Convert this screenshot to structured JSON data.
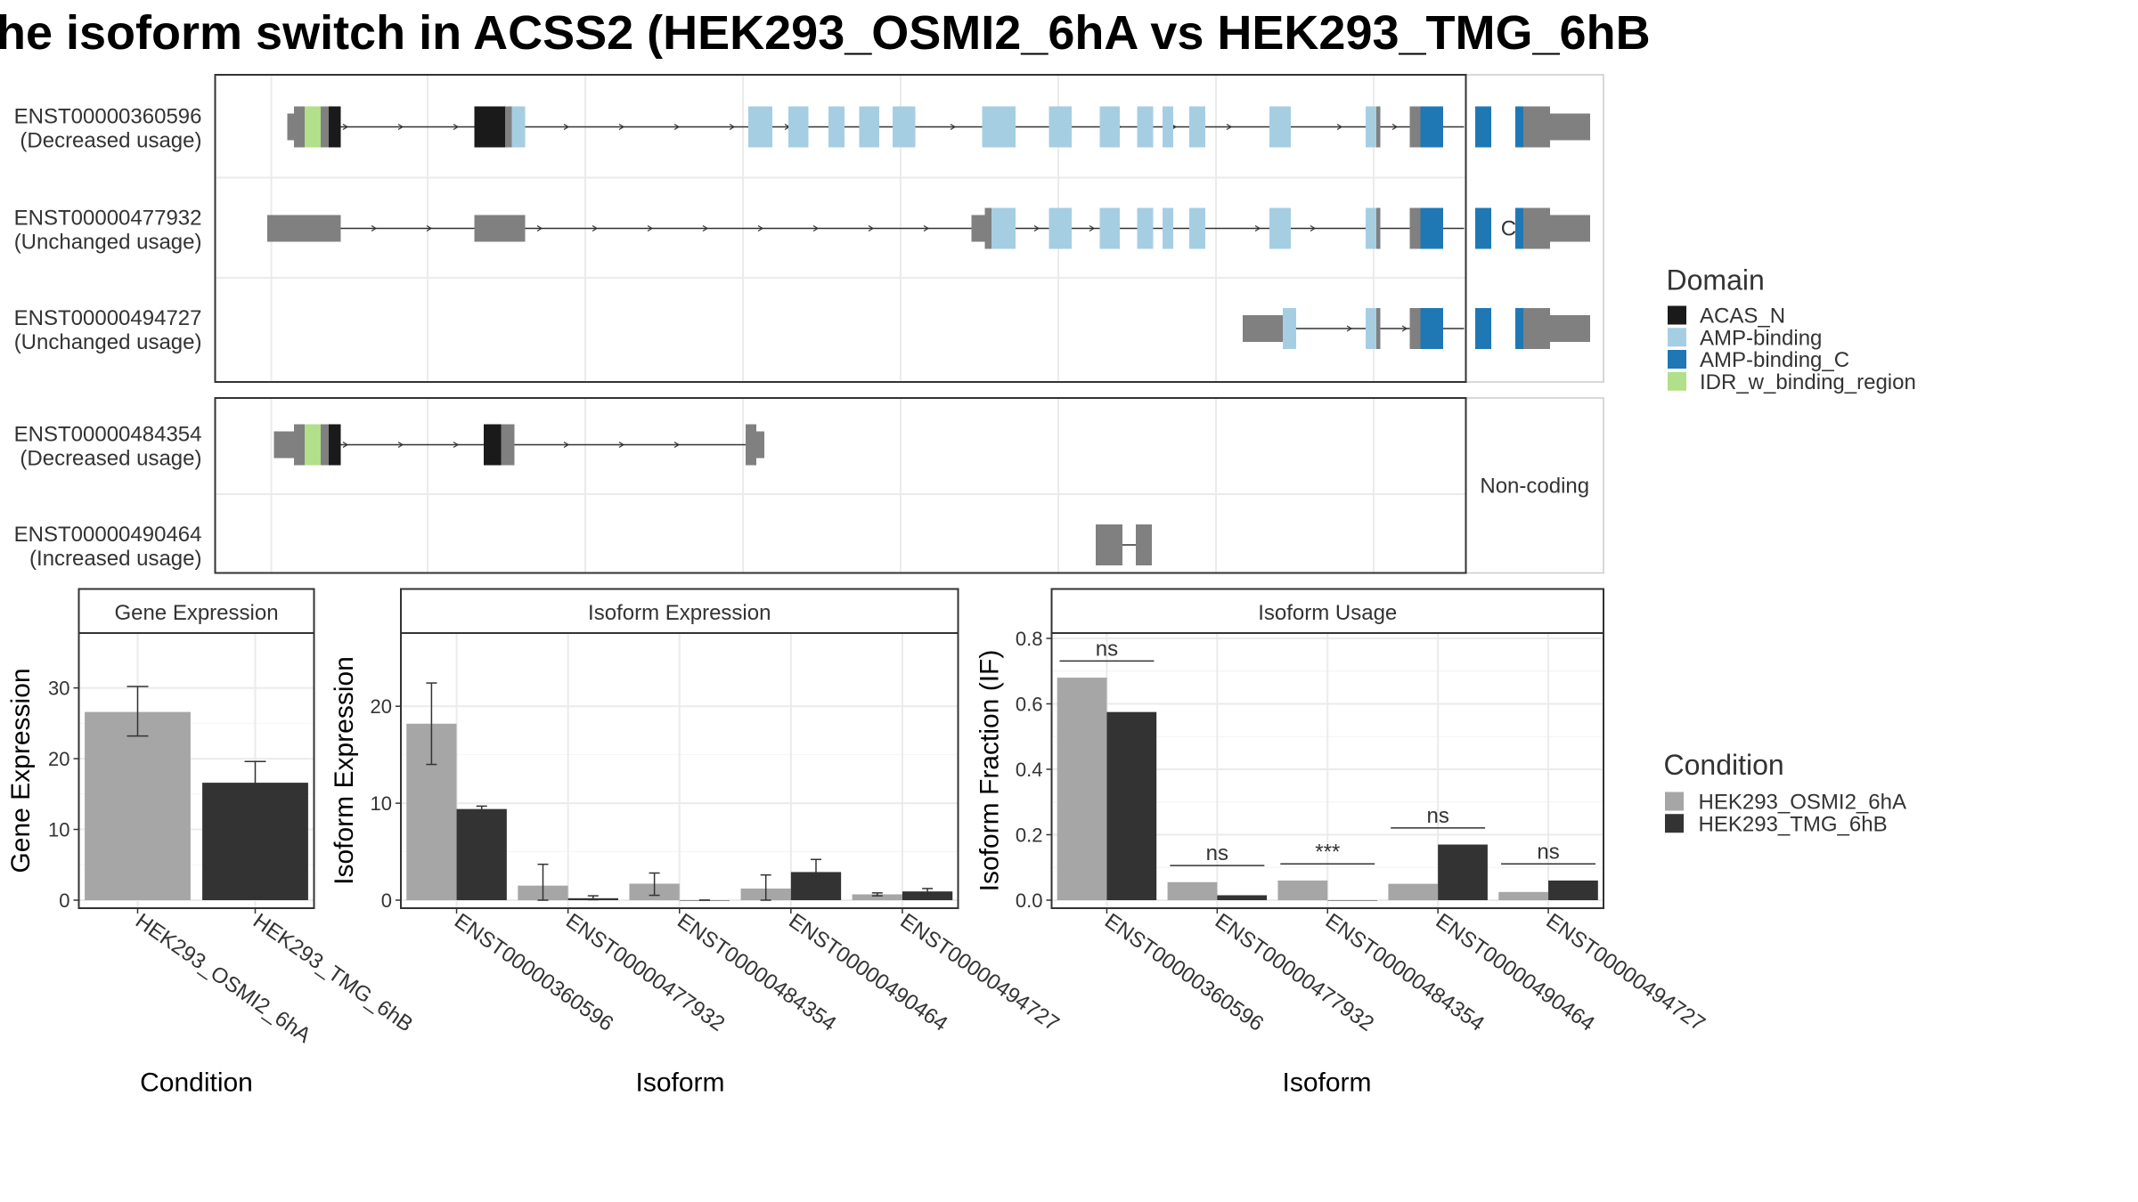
{
  "title": "he isoform switch in ACSS2 (HEK293_OSMI2_6hA vs HEK293_TMG_6hB",
  "colors": {
    "ACAS_N": "#1a1a1a",
    "AMP-binding": "#a6cee3",
    "AMP-binding_C": "#1f78b4",
    "IDR_w_binding_region": "#b2df8a",
    "utr": "#808080",
    "cond1": "#a6a6a6",
    "cond2": "#333333"
  },
  "structure": {
    "coding_strip": "Coding",
    "noncoding_strip": "Non-coding",
    "coding": [
      {
        "id": "ENST00000360596",
        "usage": "(Decreased usage)",
        "intron": [
          220,
          1520
        ],
        "blocks": [
          {
            "s": 215,
            "e": 220,
            "h": "s",
            "c": "utr"
          },
          {
            "s": 220,
            "e": 228,
            "h": "t",
            "c": "utr"
          },
          {
            "s": 228,
            "e": 240,
            "h": "t",
            "c": "IDR_w_binding_region"
          },
          {
            "s": 240,
            "e": 246,
            "h": "t",
            "c": "utr"
          },
          {
            "s": 246,
            "e": 255,
            "h": "t",
            "c": "ACAS_N"
          },
          {
            "s": 355,
            "e": 378,
            "h": "t",
            "c": "ACAS_N"
          },
          {
            "s": 378,
            "e": 383,
            "h": "t",
            "c": "utr"
          },
          {
            "s": 383,
            "e": 393,
            "h": "t",
            "c": "AMP-binding"
          },
          {
            "s": 560,
            "e": 578,
            "h": "t",
            "c": "AMP-binding"
          },
          {
            "s": 590,
            "e": 605,
            "h": "t",
            "c": "AMP-binding"
          },
          {
            "s": 620,
            "e": 632,
            "h": "t",
            "c": "AMP-binding"
          },
          {
            "s": 643,
            "e": 658,
            "h": "t",
            "c": "AMP-binding"
          },
          {
            "s": 668,
            "e": 685,
            "h": "t",
            "c": "AMP-binding"
          },
          {
            "s": 735,
            "e": 760,
            "h": "t",
            "c": "AMP-binding"
          },
          {
            "s": 785,
            "e": 802,
            "h": "t",
            "c": "AMP-binding"
          },
          {
            "s": 823,
            "e": 838,
            "h": "t",
            "c": "AMP-binding"
          },
          {
            "s": 851,
            "e": 863,
            "h": "t",
            "c": "AMP-binding"
          },
          {
            "s": 870,
            "e": 878,
            "h": "t",
            "c": "AMP-binding"
          },
          {
            "s": 890,
            "e": 902,
            "h": "t",
            "c": "AMP-binding"
          },
          {
            "s": 950,
            "e": 966,
            "h": "t",
            "c": "AMP-binding"
          },
          {
            "s": 1022,
            "e": 1030,
            "h": "t",
            "c": "AMP-binding"
          },
          {
            "s": 1030,
            "e": 1033,
            "h": "t",
            "c": "utr"
          },
          {
            "s": 1055,
            "e": 1063,
            "h": "t",
            "c": "utr"
          },
          {
            "s": 1063,
            "e": 1080,
            "h": "t",
            "c": "AMP-binding_C"
          },
          {
            "s": 1104,
            "e": 1116,
            "h": "t",
            "c": "AMP-binding_C"
          },
          {
            "s": 1134,
            "e": 1140,
            "h": "t",
            "c": "AMP-binding_C"
          },
          {
            "s": 1140,
            "e": 1160,
            "h": "t",
            "c": "utr"
          },
          {
            "s": 1160,
            "e": 1190,
            "h": "s",
            "c": "utr"
          }
        ]
      },
      {
        "id": "ENST00000477932",
        "usage": "(Unchanged usage)",
        "intron": [
          200,
          1520
        ],
        "blocks": [
          {
            "s": 200,
            "e": 255,
            "h": "s",
            "c": "utr"
          },
          {
            "s": 355,
            "e": 393,
            "h": "s",
            "c": "utr"
          },
          {
            "s": 727,
            "e": 737,
            "h": "s",
            "c": "utr"
          },
          {
            "s": 737,
            "e": 742,
            "h": "t",
            "c": "utr"
          },
          {
            "s": 742,
            "e": 760,
            "h": "t",
            "c": "AMP-binding"
          },
          {
            "s": 785,
            "e": 802,
            "h": "t",
            "c": "AMP-binding"
          },
          {
            "s": 823,
            "e": 838,
            "h": "t",
            "c": "AMP-binding"
          },
          {
            "s": 851,
            "e": 863,
            "h": "t",
            "c": "AMP-binding"
          },
          {
            "s": 870,
            "e": 878,
            "h": "t",
            "c": "AMP-binding"
          },
          {
            "s": 890,
            "e": 902,
            "h": "t",
            "c": "AMP-binding"
          },
          {
            "s": 950,
            "e": 966,
            "h": "t",
            "c": "AMP-binding"
          },
          {
            "s": 1022,
            "e": 1030,
            "h": "t",
            "c": "AMP-binding"
          },
          {
            "s": 1030,
            "e": 1033,
            "h": "t",
            "c": "utr"
          },
          {
            "s": 1055,
            "e": 1063,
            "h": "t",
            "c": "utr"
          },
          {
            "s": 1063,
            "e": 1080,
            "h": "t",
            "c": "AMP-binding_C"
          },
          {
            "s": 1104,
            "e": 1116,
            "h": "t",
            "c": "AMP-binding_C"
          },
          {
            "s": 1134,
            "e": 1140,
            "h": "t",
            "c": "AMP-binding_C"
          },
          {
            "s": 1140,
            "e": 1160,
            "h": "t",
            "c": "utr"
          },
          {
            "s": 1160,
            "e": 1190,
            "h": "s",
            "c": "utr"
          }
        ]
      },
      {
        "id": "ENST00000494727",
        "usage": "(Unchanged usage)",
        "intron": [
          930,
          1190
        ],
        "blocks": [
          {
            "s": 930,
            "e": 960,
            "h": "s",
            "c": "utr"
          },
          {
            "s": 960,
            "e": 970,
            "h": "t",
            "c": "AMP-binding"
          },
          {
            "s": 1022,
            "e": 1030,
            "h": "t",
            "c": "AMP-binding"
          },
          {
            "s": 1030,
            "e": 1033,
            "h": "t",
            "c": "utr"
          },
          {
            "s": 1055,
            "e": 1063,
            "h": "t",
            "c": "utr"
          },
          {
            "s": 1063,
            "e": 1080,
            "h": "t",
            "c": "AMP-binding_C"
          },
          {
            "s": 1104,
            "e": 1116,
            "h": "t",
            "c": "AMP-binding_C"
          },
          {
            "s": 1134,
            "e": 1140,
            "h": "t",
            "c": "AMP-binding_C"
          },
          {
            "s": 1140,
            "e": 1160,
            "h": "t",
            "c": "utr"
          },
          {
            "s": 1160,
            "e": 1190,
            "h": "s",
            "c": "utr"
          }
        ]
      }
    ],
    "noncoding": [
      {
        "id": "ENST00000484354",
        "usage": "(Decreased usage)",
        "intron": [
          220,
          570
        ],
        "blocks": [
          {
            "s": 205,
            "e": 220,
            "h": "s",
            "c": "utr"
          },
          {
            "s": 220,
            "e": 228,
            "h": "t",
            "c": "utr"
          },
          {
            "s": 228,
            "e": 240,
            "h": "t",
            "c": "IDR_w_binding_region"
          },
          {
            "s": 240,
            "e": 246,
            "h": "t",
            "c": "utr"
          },
          {
            "s": 246,
            "e": 255,
            "h": "t",
            "c": "ACAS_N"
          },
          {
            "s": 362,
            "e": 375,
            "h": "t",
            "c": "ACAS_N"
          },
          {
            "s": 375,
            "e": 385,
            "h": "t",
            "c": "utr"
          },
          {
            "s": 558,
            "e": 566,
            "h": "t",
            "c": "utr"
          },
          {
            "s": 566,
            "e": 572,
            "h": "s",
            "c": "utr"
          }
        ]
      },
      {
        "id": "ENST00000490464",
        "usage": "(Increased usage)",
        "intron": [
          820,
          850
        ],
        "blocks": [
          {
            "s": 820,
            "e": 840,
            "h": "t",
            "c": "utr"
          },
          {
            "s": 850,
            "e": 862,
            "h": "t",
            "c": "utr"
          }
        ]
      }
    ]
  },
  "legends": {
    "domain_title": "Domain",
    "domain_items": [
      "ACAS_N",
      "AMP-binding",
      "AMP-binding_C",
      "IDR_w_binding_region"
    ],
    "condition_title": "Condition",
    "condition_items": [
      "HEK293_OSMI2_6hA",
      "HEK293_TMG_6hB"
    ]
  },
  "chart_data": [
    {
      "type": "bar",
      "title": "Gene Expression",
      "xlabel": "Condition",
      "ylabel": "Gene Expression",
      "ylim": [
        0,
        37
      ],
      "yticks": [
        0,
        10,
        20,
        30
      ],
      "categories": [
        "HEK293_OSMI2_6hA",
        "HEK293_TMG_6hB"
      ],
      "values": [
        26.6,
        16.6
      ],
      "err_low": [
        23.2,
        13.7
      ],
      "err_high": [
        30.2,
        19.6
      ]
    },
    {
      "type": "bar",
      "title": "Isoform Expression",
      "xlabel": "Isoform",
      "ylabel": "Isoform Expression",
      "ylim": [
        0,
        27
      ],
      "yticks": [
        0,
        10,
        20
      ],
      "categories": [
        "ENST00000360596",
        "ENST00000477932",
        "ENST00000484354",
        "ENST00000490464",
        "ENST00000494727"
      ],
      "series": [
        {
          "name": "HEK293_OSMI2_6hA",
          "values": [
            18.2,
            1.5,
            1.7,
            1.2,
            0.6
          ],
          "err_low": [
            14.0,
            0.0,
            0.5,
            0.0,
            0.45
          ],
          "err_high": [
            22.4,
            3.7,
            2.8,
            2.6,
            0.75
          ]
        },
        {
          "name": "HEK293_TMG_6hB",
          "values": [
            9.4,
            0.2,
            0.0,
            2.9,
            0.9
          ],
          "err_low": [
            9.1,
            0.05,
            0.0,
            1.8,
            0.7
          ],
          "err_high": [
            9.7,
            0.45,
            0.0,
            4.2,
            1.2
          ]
        }
      ]
    },
    {
      "type": "bar",
      "title": "Isoform Usage",
      "xlabel": "Isoform",
      "ylabel": "Isoform Fraction (IF)",
      "ylim": [
        0,
        0.8
      ],
      "yticks": [
        0.0,
        0.2,
        0.4,
        0.6,
        0.8
      ],
      "categories": [
        "ENST00000360596",
        "ENST00000477932",
        "ENST00000484354",
        "ENST00000490464",
        "ENST00000494727"
      ],
      "series": [
        {
          "name": "HEK293_OSMI2_6hA",
          "values": [
            0.68,
            0.055,
            0.06,
            0.05,
            0.025
          ]
        },
        {
          "name": "HEK293_TMG_6hB",
          "values": [
            0.575,
            0.015,
            0.0,
            0.17,
            0.06
          ]
        }
      ],
      "significance": [
        "ns",
        "ns",
        "***",
        "ns",
        "ns"
      ]
    }
  ]
}
